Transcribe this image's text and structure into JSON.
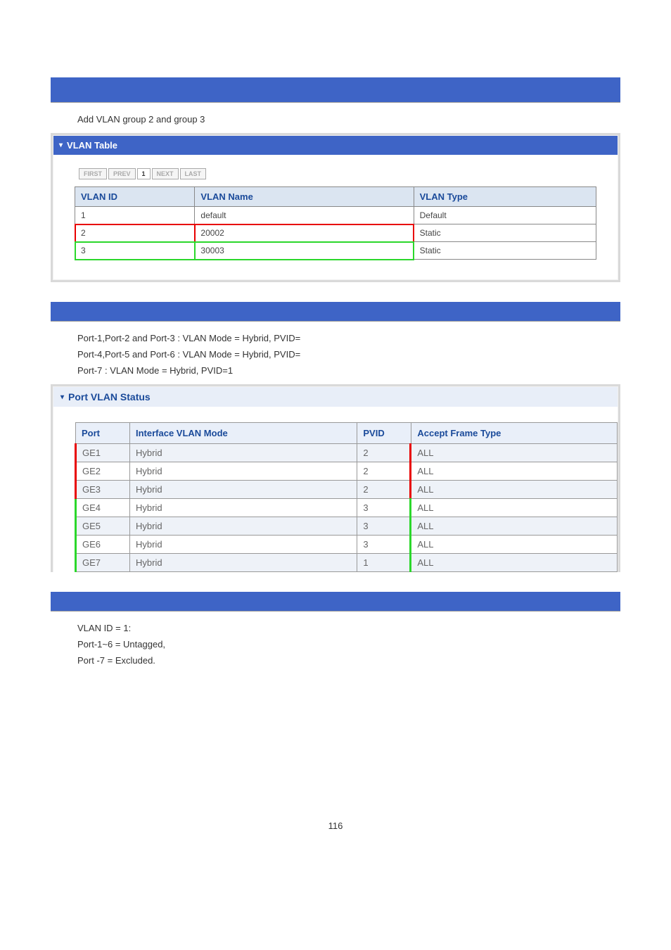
{
  "colors": {
    "bar_blue": "#3e64c6",
    "header_text": "#1a4a9a",
    "header_bg": "#dbe5f1",
    "port_header_bg": "#e9eff9",
    "alt_row_bg": "#eef2f8",
    "hl_red": "#e80000",
    "hl_green": "#2bd72b",
    "border_gray": "#888888",
    "panel_border": "#d9d9d9"
  },
  "section1": {
    "title": "Add VLAN group 2 and group 3"
  },
  "vlan_panel": {
    "title": "VLAN Table",
    "pager": {
      "first": "FIRST",
      "prev": "PREV",
      "page": "1",
      "next": "NEXT",
      "last": "LAST"
    },
    "columns": {
      "id": "VLAN ID",
      "name": "VLAN Name",
      "type": "VLAN Type"
    },
    "rows": [
      {
        "id": "1",
        "name": "default",
        "type": "Default",
        "hl": "none"
      },
      {
        "id": "2",
        "name": "20002",
        "type": "Static",
        "hl": "red"
      },
      {
        "id": "3",
        "name": "30003",
        "type": "Static",
        "hl": "green"
      }
    ]
  },
  "section2": {
    "lines": [
      "Port-1,Port-2 and Port-3 : VLAN Mode = Hybrid, PVID=",
      "Port-4,Port-5 and Port-6 : VLAN Mode = Hybrid, PVID=",
      "Port-7 : VLAN Mode = Hybrid, PVID=1"
    ]
  },
  "port_panel": {
    "title": "Port VLAN Status",
    "columns": {
      "port": "Port",
      "mode": "Interface VLAN Mode",
      "pvid": "PVID",
      "aft": "Accept Frame Type"
    },
    "rows": [
      {
        "port": "GE1",
        "mode": "Hybrid",
        "pvid": "2",
        "aft": "ALL",
        "alt": true,
        "group": "red"
      },
      {
        "port": "GE2",
        "mode": "Hybrid",
        "pvid": "2",
        "aft": "ALL",
        "alt": false,
        "group": "red"
      },
      {
        "port": "GE3",
        "mode": "Hybrid",
        "pvid": "2",
        "aft": "ALL",
        "alt": true,
        "group": "red"
      },
      {
        "port": "GE4",
        "mode": "Hybrid",
        "pvid": "3",
        "aft": "ALL",
        "alt": false,
        "group": "green"
      },
      {
        "port": "GE5",
        "mode": "Hybrid",
        "pvid": "3",
        "aft": "ALL",
        "alt": true,
        "group": "green"
      },
      {
        "port": "GE6",
        "mode": "Hybrid",
        "pvid": "3",
        "aft": "ALL",
        "alt": false,
        "group": "green"
      },
      {
        "port": "GE7",
        "mode": "Hybrid",
        "pvid": "1",
        "aft": "ALL",
        "alt": true,
        "group": "green"
      }
    ]
  },
  "section3": {
    "lines": [
      "VLAN ID = 1:",
      "Port-1~6 = Untagged,",
      "Port -7 = Excluded."
    ]
  },
  "page_number": "116"
}
